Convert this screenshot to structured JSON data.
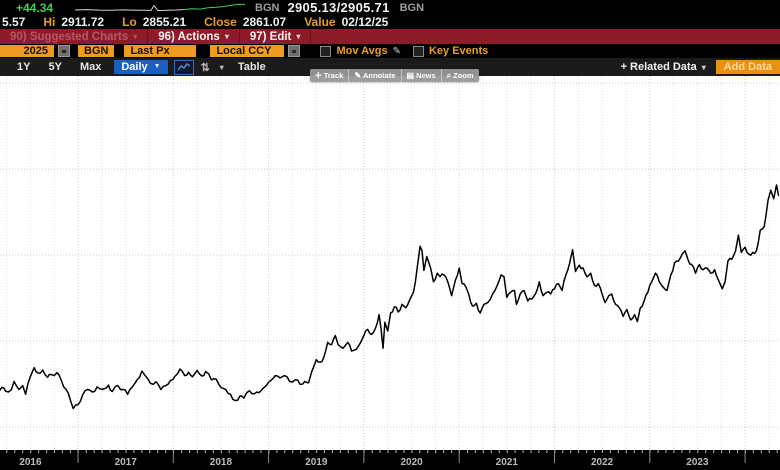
{
  "quote": {
    "change": "+44.34",
    "src_label_1": "BGN",
    "bid_ask": "2905.13/2905.71",
    "src_label_2": "BGN",
    "last_partial": "5.57",
    "hi_label": "Hi",
    "hi_value": "2911.72",
    "lo_label": "Lo",
    "lo_value": "2855.21",
    "close_label": "Close",
    "close_value": "2861.07",
    "value_label": "Value",
    "value_date": "02/12/25"
  },
  "menu_bar": {
    "suggested_charts": "90) Suggested Charts",
    "actions": "96) Actions",
    "edit": "97) Edit"
  },
  "fields_bar": {
    "date_partial": "2025",
    "source_field": "BGN",
    "price_field": "Last Px",
    "currency_field": "Local CCY",
    "mov_avgs_label": "Mov Avgs",
    "key_events_label": "Key Events"
  },
  "range_bar": {
    "r_1y": "1Y",
    "r_5y": "5Y",
    "r_max": "Max",
    "frequency": "Daily",
    "table_label": "Table",
    "related_data": "+ Related Data",
    "add_data": "Add Data"
  },
  "hover_toolbar": {
    "track": "Track",
    "annotate": "Annotate",
    "news": "News",
    "zoom": "Zoom"
  },
  "colors": {
    "amber": "#ef9b21",
    "green": "#3ece5a",
    "red_bar": "#8e1b28",
    "blue": "#1b5fc1",
    "line": "#000000"
  },
  "chart_data": {
    "type": "line",
    "title": "Daily price history (last px), cropped right/left axes",
    "x_axis": {
      "tick_labels": [
        "2016",
        "2017",
        "2018",
        "2019",
        "2020",
        "2021",
        "2022",
        "2023"
      ],
      "minor_ticks": "monthly",
      "grid": "quarterly",
      "start": 2016.13,
      "end": 2024.35
    },
    "y_axis": {
      "labels_visible": false,
      "approx_range": [
        1100,
        2450
      ],
      "gridlines": 5
    },
    "legend": "none",
    "series": [
      {
        "name": "Last Px (daily)",
        "color": "#000000",
        "points": [
          [
            2016.13,
            1215
          ],
          [
            2016.2,
            1252
          ],
          [
            2016.24,
            1230
          ],
          [
            2016.3,
            1238
          ],
          [
            2016.33,
            1286
          ],
          [
            2016.38,
            1240
          ],
          [
            2016.42,
            1262
          ],
          [
            2016.45,
            1212
          ],
          [
            2016.5,
            1315
          ],
          [
            2016.54,
            1366
          ],
          [
            2016.58,
            1335
          ],
          [
            2016.63,
            1352
          ],
          [
            2016.68,
            1310
          ],
          [
            2016.72,
            1326
          ],
          [
            2016.78,
            1337
          ],
          [
            2016.82,
            1300
          ],
          [
            2016.85,
            1255
          ],
          [
            2016.9,
            1215
          ],
          [
            2016.95,
            1130
          ],
          [
            2017,
            1152
          ],
          [
            2017.05,
            1210
          ],
          [
            2017.1,
            1240
          ],
          [
            2017.15,
            1225
          ],
          [
            2017.2,
            1255
          ],
          [
            2017.28,
            1245
          ],
          [
            2017.32,
            1265
          ],
          [
            2017.36,
            1228
          ],
          [
            2017.42,
            1262
          ],
          [
            2017.47,
            1240
          ],
          [
            2017.52,
            1212
          ],
          [
            2017.57,
            1255
          ],
          [
            2017.62,
            1295
          ],
          [
            2017.67,
            1346
          ],
          [
            2017.72,
            1310
          ],
          [
            2017.76,
            1275
          ],
          [
            2017.82,
            1285
          ],
          [
            2017.87,
            1240
          ],
          [
            2017.92,
            1262
          ],
          [
            2017.97,
            1292
          ],
          [
            2018.02,
            1318
          ],
          [
            2018.07,
            1358
          ],
          [
            2018.12,
            1320
          ],
          [
            2018.16,
            1340
          ],
          [
            2018.2,
            1313
          ],
          [
            2018.25,
            1350
          ],
          [
            2018.3,
            1318
          ],
          [
            2018.34,
            1343
          ],
          [
            2018.4,
            1296
          ],
          [
            2018.45,
            1300
          ],
          [
            2018.5,
            1252
          ],
          [
            2018.55,
            1240
          ],
          [
            2018.6,
            1212
          ],
          [
            2018.65,
            1176
          ],
          [
            2018.7,
            1202
          ],
          [
            2018.74,
            1190
          ],
          [
            2018.8,
            1232
          ],
          [
            2018.85,
            1215
          ],
          [
            2018.9,
            1222
          ],
          [
            2018.95,
            1250
          ],
          [
            2019,
            1282
          ],
          [
            2019.07,
            1320
          ],
          [
            2019.12,
            1306
          ],
          [
            2019.17,
            1320
          ],
          [
            2019.22,
            1286
          ],
          [
            2019.28,
            1296
          ],
          [
            2019.33,
            1270
          ],
          [
            2019.38,
            1286
          ],
          [
            2019.42,
            1278
          ],
          [
            2019.45,
            1340
          ],
          [
            2019.5,
            1412
          ],
          [
            2019.54,
            1398
          ],
          [
            2019.58,
            1428
          ],
          [
            2019.62,
            1512
          ],
          [
            2019.66,
            1498
          ],
          [
            2019.7,
            1552
          ],
          [
            2019.73,
            1498
          ],
          [
            2019.78,
            1478
          ],
          [
            2019.83,
            1512
          ],
          [
            2019.87,
            1462
          ],
          [
            2019.92,
            1472
          ],
          [
            2019.97,
            1516
          ],
          [
            2020,
            1552
          ],
          [
            2020.04,
            1588
          ],
          [
            2020.08,
            1558
          ],
          [
            2020.12,
            1592
          ],
          [
            2020.16,
            1672
          ],
          [
            2020.18,
            1588
          ],
          [
            2020.2,
            1478
          ],
          [
            2020.22,
            1628
          ],
          [
            2020.25,
            1578
          ],
          [
            2020.28,
            1682
          ],
          [
            2020.32,
            1718
          ],
          [
            2020.36,
            1688
          ],
          [
            2020.4,
            1732
          ],
          [
            2020.44,
            1712
          ],
          [
            2020.48,
            1756
          ],
          [
            2020.52,
            1802
          ],
          [
            2020.56,
            1948
          ],
          [
            2020.59,
            2068
          ],
          [
            2020.61,
            2042
          ],
          [
            2020.63,
            1928
          ],
          [
            2020.66,
            2008
          ],
          [
            2020.7,
            1942
          ],
          [
            2020.73,
            1862
          ],
          [
            2020.77,
            1912
          ],
          [
            2020.8,
            1892
          ],
          [
            2020.84,
            1902
          ],
          [
            2020.88,
            1862
          ],
          [
            2020.92,
            1782
          ],
          [
            2020.96,
            1872
          ],
          [
            2021,
            1942
          ],
          [
            2021.03,
            1852
          ],
          [
            2021.07,
            1832
          ],
          [
            2021.1,
            1792
          ],
          [
            2021.14,
            1722
          ],
          [
            2021.18,
            1738
          ],
          [
            2021.22,
            1682
          ],
          [
            2021.26,
            1732
          ],
          [
            2021.3,
            1742
          ],
          [
            2021.35,
            1792
          ],
          [
            2021.4,
            1842
          ],
          [
            2021.44,
            1902
          ],
          [
            2021.47,
            1892
          ],
          [
            2021.5,
            1772
          ],
          [
            2021.54,
            1802
          ],
          [
            2021.58,
            1812
          ],
          [
            2021.6,
            1732
          ],
          [
            2021.64,
            1792
          ],
          [
            2021.68,
            1812
          ],
          [
            2021.72,
            1752
          ],
          [
            2021.76,
            1762
          ],
          [
            2021.8,
            1792
          ],
          [
            2021.84,
            1862
          ],
          [
            2021.88,
            1782
          ],
          [
            2021.92,
            1802
          ],
          [
            2021.96,
            1792
          ],
          [
            2022,
            1822
          ],
          [
            2022.04,
            1852
          ],
          [
            2022.08,
            1812
          ],
          [
            2022.12,
            1902
          ],
          [
            2022.16,
            1972
          ],
          [
            2022.19,
            2048
          ],
          [
            2022.22,
            1922
          ],
          [
            2022.26,
            1958
          ],
          [
            2022.3,
            1942
          ],
          [
            2022.34,
            1892
          ],
          [
            2022.38,
            1912
          ],
          [
            2022.42,
            1842
          ],
          [
            2022.46,
            1852
          ],
          [
            2022.5,
            1792
          ],
          [
            2022.53,
            1742
          ],
          [
            2022.57,
            1782
          ],
          [
            2022.6,
            1792
          ],
          [
            2022.64,
            1732
          ],
          [
            2022.68,
            1712
          ],
          [
            2022.72,
            1662
          ],
          [
            2022.76,
            1702
          ],
          [
            2022.8,
            1642
          ],
          [
            2022.84,
            1672
          ],
          [
            2022.87,
            1632
          ],
          [
            2022.9,
            1712
          ],
          [
            2022.94,
            1752
          ],
          [
            2022.98,
            1802
          ],
          [
            2023.02,
            1862
          ],
          [
            2023.06,
            1912
          ],
          [
            2023.1,
            1862
          ],
          [
            2023.14,
            1832
          ],
          [
            2023.18,
            1812
          ],
          [
            2023.22,
            1902
          ],
          [
            2023.26,
            1972
          ],
          [
            2023.3,
            1982
          ],
          [
            2023.34,
            2022
          ],
          [
            2023.37,
            2042
          ],
          [
            2023.4,
            1992
          ],
          [
            2023.44,
            1962
          ],
          [
            2023.48,
            1912
          ],
          [
            2023.52,
            1962
          ],
          [
            2023.56,
            1932
          ],
          [
            2023.6,
            1942
          ],
          [
            2023.64,
            1912
          ],
          [
            2023.68,
            1932
          ],
          [
            2023.72,
            1872
          ],
          [
            2023.76,
            1822
          ],
          [
            2023.79,
            1862
          ],
          [
            2023.82,
            1982
          ],
          [
            2023.86,
            1992
          ],
          [
            2023.9,
            2042
          ],
          [
            2023.93,
            2132
          ],
          [
            2023.96,
            2032
          ],
          [
            2024,
            2062
          ],
          [
            2024.04,
            2022
          ],
          [
            2024.08,
            2032
          ],
          [
            2024.12,
            2042
          ],
          [
            2024.16,
            2162
          ],
          [
            2024.2,
            2182
          ],
          [
            2024.24,
            2332
          ],
          [
            2024.27,
            2392
          ],
          [
            2024.3,
            2342
          ],
          [
            2024.33,
            2422
          ],
          [
            2024.35,
            2362
          ]
        ]
      }
    ]
  }
}
